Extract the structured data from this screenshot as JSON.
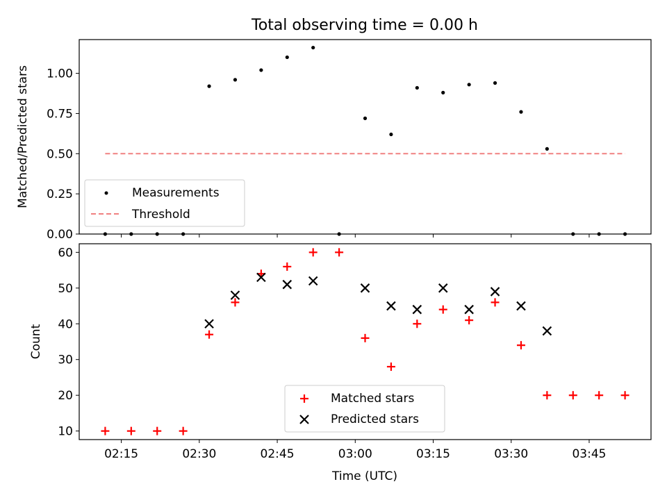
{
  "chart_data": [
    {
      "type": "scatter",
      "title": "Total observing time = 0.00 h",
      "xlabel": "",
      "ylabel": "Matched/Predicted stars",
      "ylim": [
        0,
        1.21
      ],
      "yticks": [
        0.0,
        0.25,
        0.5,
        0.75,
        1.0
      ],
      "ytick_labels": [
        "0.00",
        "0.25",
        "0.50",
        "0.75",
        "1.00"
      ],
      "xlim": [
        126.9,
        236.9
      ],
      "xticks": [
        135,
        150,
        165,
        180,
        195,
        210,
        225
      ],
      "series": [
        {
          "name": "Measurements",
          "marker": "dot",
          "color": "#000000",
          "x": [
            131.9,
            136.9,
            141.9,
            146.9,
            151.9,
            156.9,
            161.9,
            166.9,
            171.9,
            176.9,
            181.9,
            186.9,
            191.9,
            196.9,
            201.9,
            206.9,
            211.9,
            216.9,
            221.9,
            226.9,
            231.9
          ],
          "y": [
            0.0,
            0.0,
            0.0,
            0.0,
            0.92,
            0.96,
            1.02,
            1.1,
            1.16,
            0.0,
            0.72,
            0.62,
            0.91,
            0.88,
            0.93,
            0.94,
            0.76,
            0.53,
            0.0,
            0.0,
            0.0
          ]
        },
        {
          "name": "Threshold",
          "marker": "dashed-line",
          "color": "#f08080",
          "x": [
            131.9,
            231.9
          ],
          "y": [
            0.5,
            0.5
          ]
        }
      ],
      "legend_position": "lower-left"
    },
    {
      "type": "scatter",
      "title": "",
      "xlabel": "Time (UTC)",
      "ylabel": "Count",
      "ylim": [
        7.6,
        62.4
      ],
      "yticks": [
        10,
        20,
        30,
        40,
        50,
        60
      ],
      "ytick_labels": [
        "10",
        "20",
        "30",
        "40",
        "50",
        "60"
      ],
      "xlim": [
        126.9,
        236.9
      ],
      "xticks": [
        135,
        150,
        165,
        180,
        195,
        210,
        225
      ],
      "xtick_labels": [
        "02:15",
        "02:30",
        "02:45",
        "03:00",
        "03:15",
        "03:30",
        "03:45"
      ],
      "series": [
        {
          "name": "Matched stars",
          "marker": "plus",
          "color": "#ff0000",
          "x": [
            131.9,
            136.9,
            141.9,
            146.9,
            151.9,
            156.9,
            161.9,
            166.9,
            171.9,
            176.9,
            181.9,
            186.9,
            191.9,
            196.9,
            201.9,
            206.9,
            211.9,
            216.9,
            221.9,
            226.9,
            231.9
          ],
          "y": [
            10,
            10,
            10,
            10,
            37,
            46,
            54,
            56,
            60,
            60,
            36,
            28,
            40,
            44,
            41,
            46,
            34,
            20,
            20,
            20,
            20
          ]
        },
        {
          "name": "Predicted stars",
          "marker": "cross",
          "color": "#000000",
          "x": [
            151.9,
            156.9,
            161.9,
            166.9,
            171.9,
            181.9,
            186.9,
            191.9,
            196.9,
            201.9,
            206.9,
            211.9,
            216.9
          ],
          "y": [
            40,
            48,
            53,
            51,
            52,
            50,
            45,
            44,
            50,
            44,
            49,
            45,
            38
          ]
        }
      ],
      "legend_position": "lower-center"
    }
  ]
}
